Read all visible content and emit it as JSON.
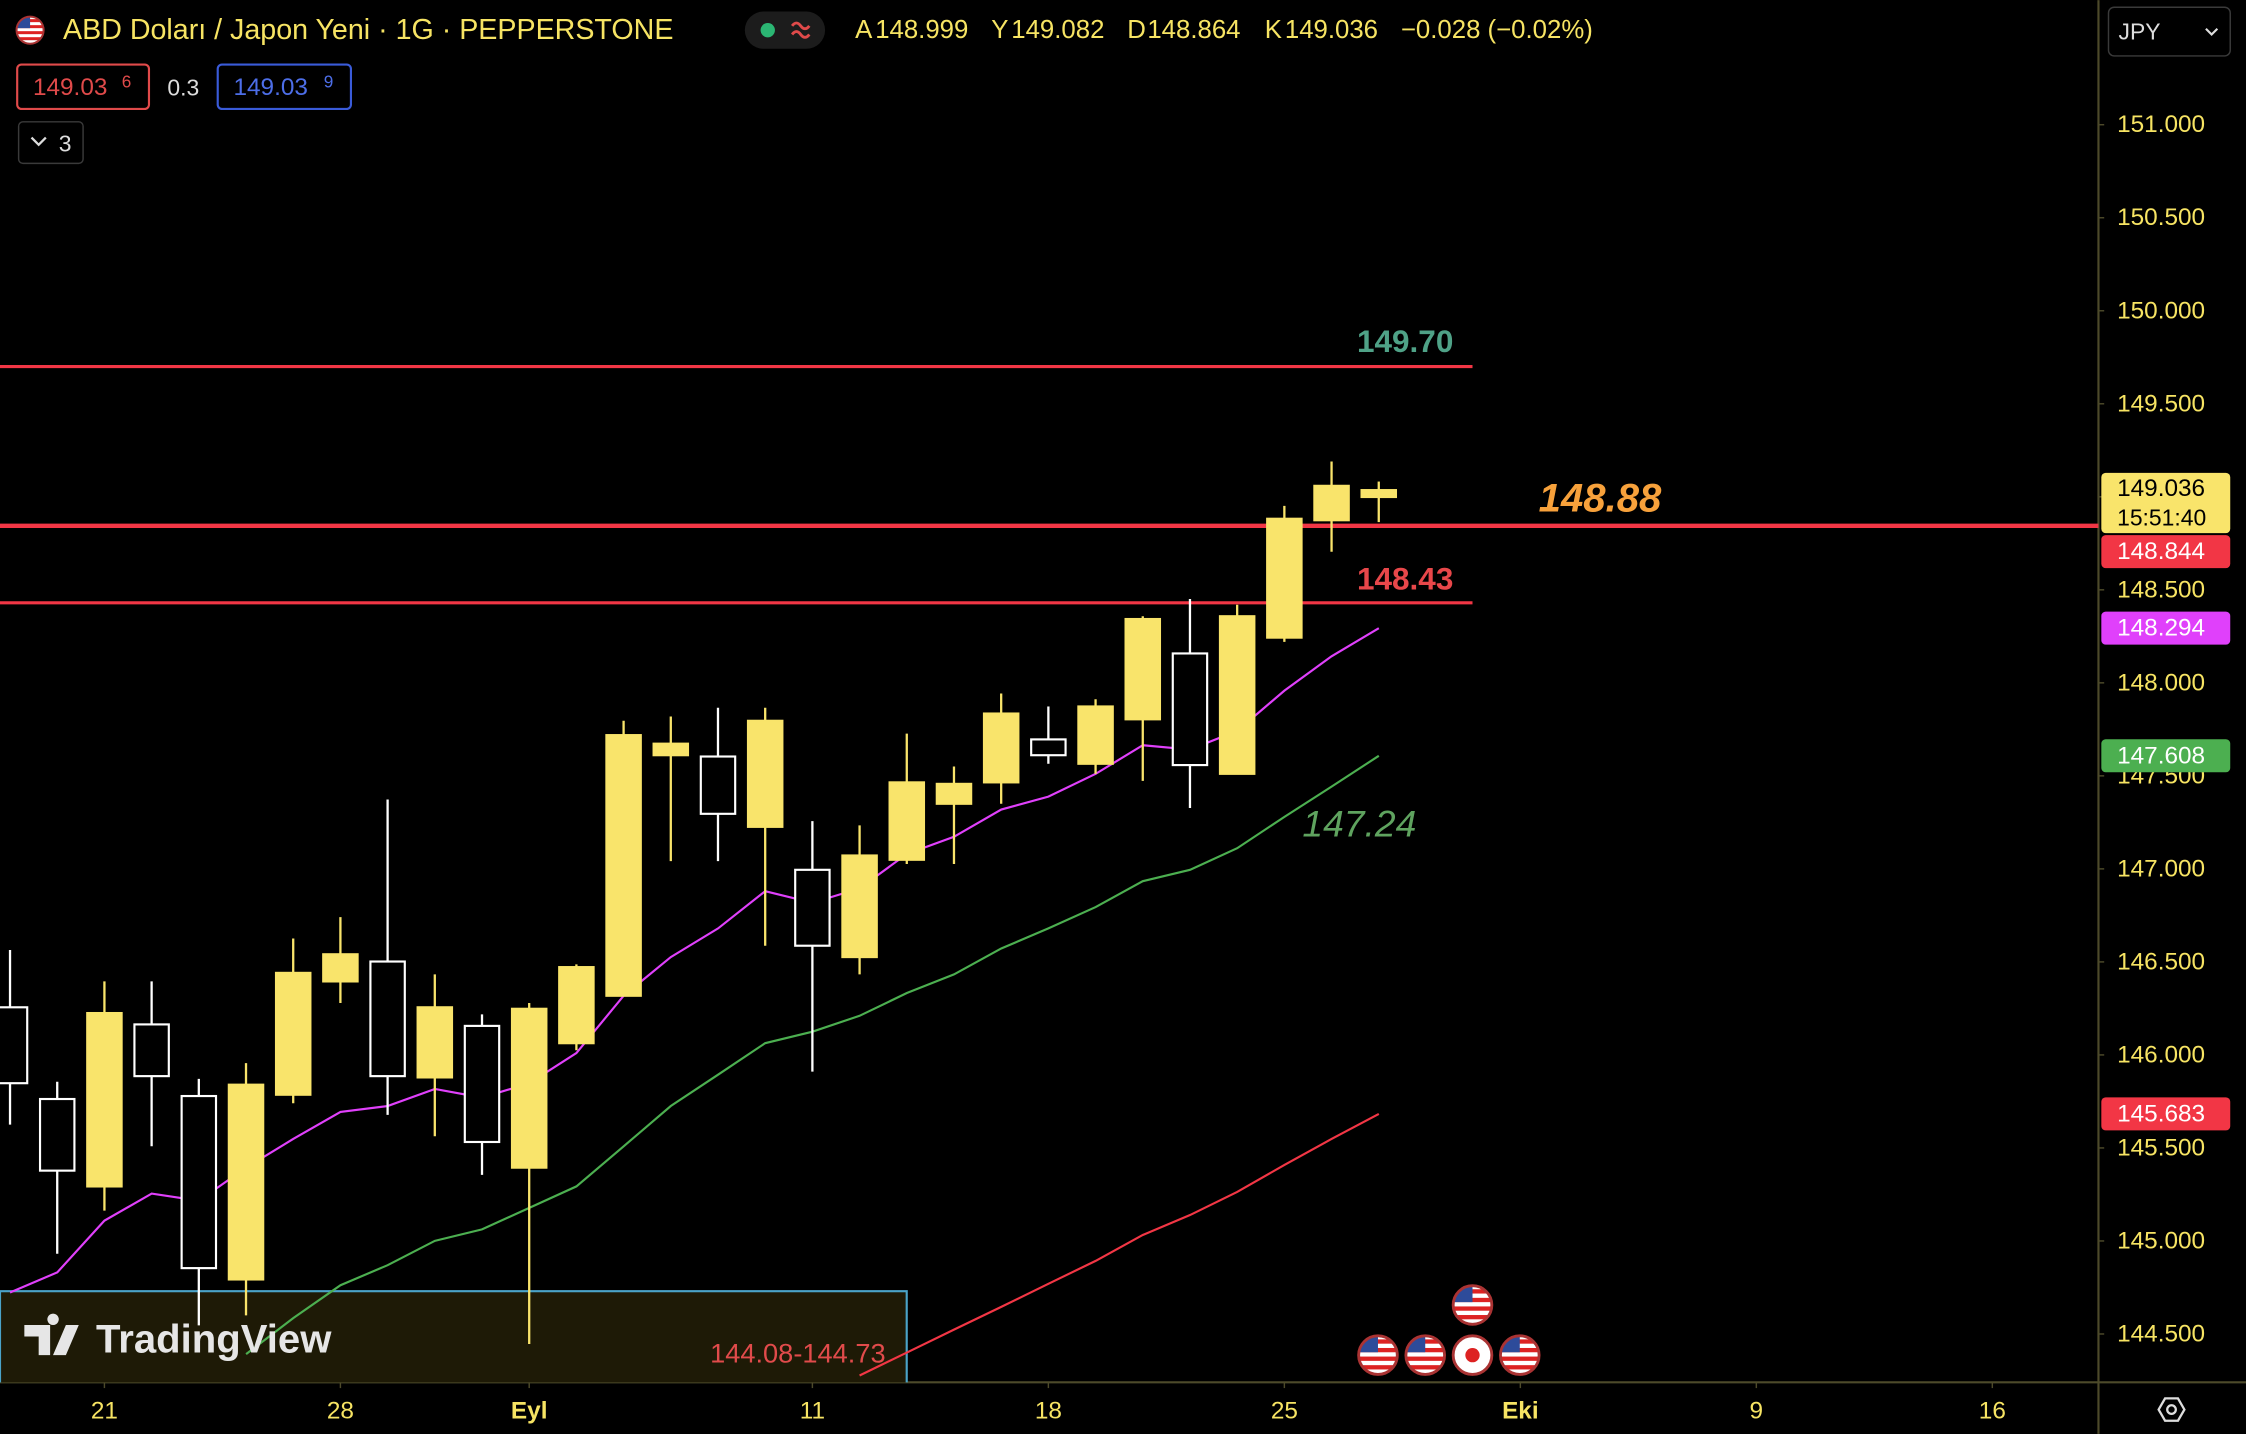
{
  "header": {
    "symbol": "ABD Doları / Japon Yeni · 1G · PEPPERSTONE",
    "ohlc_letters": [
      "A",
      "Y",
      "D",
      "K"
    ],
    "change": "−0.028 (−0.02%)",
    "bid": {
      "price": "149.03",
      "pip": "6"
    },
    "spread": "0.3",
    "ask": {
      "price": "149.03",
      "pip": "9"
    },
    "indicators_count": "3",
    "currency": "JPY"
  },
  "watermark": "TradingView",
  "chart_data": {
    "type": "candlestick",
    "categories": [
      null,
      null,
      "21",
      null,
      null,
      null,
      null,
      "28",
      null,
      null,
      null,
      "Eyl",
      null,
      null,
      null,
      null,
      null,
      "11",
      null,
      null,
      null,
      null,
      "18",
      null,
      null,
      null,
      null,
      "25",
      null,
      null,
      null,
      null,
      "Eki",
      null,
      null,
      null,
      null,
      "9",
      null,
      null,
      null,
      null,
      "16"
    ],
    "open": [
      146.256,
      145.763,
      145.293,
      146.164,
      145.779,
      144.793,
      145.786,
      146.395,
      146.502,
      145.879,
      146.156,
      145.394,
      146.063,
      146.318,
      147.611,
      147.604,
      147.226,
      146.995,
      146.526,
      147.049,
      147.35,
      147.465,
      147.696,
      147.565,
      147.804,
      148.158,
      147.511,
      148.243,
      148.874,
      148.999,
      null,
      null,
      null,
      null,
      null,
      null,
      null,
      null,
      null,
      null,
      null,
      null,
      null
    ],
    "high": [
      146.564,
      145.856,
      146.395,
      146.395,
      145.871,
      145.956,
      146.626,
      146.741,
      147.373,
      146.433,
      146.218,
      146.279,
      146.487,
      147.796,
      147.819,
      147.866,
      147.866,
      147.257,
      147.234,
      147.727,
      147.55,
      147.943,
      147.873,
      147.912,
      148.358,
      148.451,
      148.42,
      148.951,
      149.19,
      149.082,
      null,
      null,
      null,
      null,
      null,
      null,
      null,
      null,
      null,
      null,
      null,
      null,
      null
    ],
    "low": [
      145.625,
      144.931,
      145.163,
      145.509,
      144.546,
      144.6,
      145.74,
      146.279,
      145.678,
      145.563,
      145.355,
      144.446,
      146.025,
      146.318,
      147.042,
      147.042,
      146.587,
      145.91,
      146.433,
      147.026,
      147.026,
      147.35,
      147.565,
      147.511,
      147.473,
      147.327,
      147.511,
      148.22,
      148.705,
      148.864,
      null,
      null,
      null,
      null,
      null,
      null,
      null,
      null,
      null,
      null,
      null,
      null,
      null
    ],
    "close": [
      145.848,
      145.378,
      146.225,
      145.886,
      144.854,
      145.84,
      146.441,
      146.541,
      145.886,
      146.256,
      145.532,
      146.248,
      146.472,
      147.719,
      147.673,
      147.296,
      147.796,
      146.587,
      147.072,
      147.465,
      147.457,
      147.835,
      147.611,
      147.873,
      148.343,
      147.558,
      148.358,
      148.882,
      149.059,
      149.036,
      null,
      null,
      null,
      null,
      null,
      null,
      null,
      null,
      null,
      null,
      null,
      null,
      null
    ],
    "up_color": "#f9e46b",
    "down_color": "#ffffff",
    "series": [
      {
        "color": "#e040fb",
        "tag_text_color": "#ffffff",
        "values": [
          144.723,
          144.831,
          145.109,
          145.255,
          145.216,
          145.394,
          145.548,
          145.694,
          145.725,
          145.817,
          145.771,
          145.848,
          146.01,
          146.318,
          146.526,
          146.68,
          146.88,
          146.818,
          146.895,
          147.08,
          147.173,
          147.319,
          147.388,
          147.511,
          147.665,
          147.642,
          147.742,
          147.958,
          148.143,
          148.294,
          null,
          null,
          null,
          null,
          null,
          null,
          null,
          null,
          null,
          null,
          null,
          null,
          null
        ]
      },
      {
        "color": "#4caf50",
        "tag_text_color": "#ffffff",
        "values": [
          null,
          null,
          null,
          null,
          null,
          144.392,
          144.585,
          144.762,
          144.87,
          145.001,
          145.062,
          145.178,
          145.293,
          145.509,
          145.725,
          145.894,
          146.063,
          146.125,
          146.21,
          146.333,
          146.433,
          146.572,
          146.68,
          146.795,
          146.934,
          146.995,
          147.111,
          147.28,
          147.442,
          147.608,
          null,
          null,
          null,
          null,
          null,
          null,
          null,
          null,
          null,
          null,
          null,
          null,
          null
        ]
      },
      {
        "color": "#f23645",
        "tag_text_color": "#ffffff",
        "values": [
          null,
          null,
          null,
          null,
          null,
          null,
          null,
          null,
          null,
          null,
          null,
          null,
          null,
          null,
          null,
          null,
          null,
          null,
          144.277,
          144.4,
          144.523,
          144.646,
          144.77,
          144.893,
          145.032,
          145.139,
          145.263,
          145.409,
          145.548,
          145.683,
          null,
          null,
          null,
          null,
          null,
          null,
          null,
          null,
          null,
          null,
          null,
          null,
          null
        ]
      }
    ],
    "ylim": [
      144.24,
      151.67
    ],
    "yticks": [
      {
        "value": 144.5,
        "label": "144.500"
      },
      {
        "value": 145,
        "label": "145.000"
      },
      {
        "value": 145.5,
        "label": "145.500"
      },
      {
        "value": 146,
        "label": "146.000"
      },
      {
        "value": 146.5,
        "label": "146.500"
      },
      {
        "value": 147,
        "label": "147.000"
      },
      {
        "value": 147.5,
        "label": "147.500"
      },
      {
        "value": 148,
        "label": "148.000"
      },
      {
        "value": 148.5,
        "label": "148.500"
      },
      {
        "value": 149,
        "label": "149.000"
      },
      {
        "value": 149.5,
        "label": "149.500"
      },
      {
        "value": 150,
        "label": "150.000"
      },
      {
        "value": 150.5,
        "label": "150.500"
      },
      {
        "value": 151,
        "label": "151.000"
      }
    ],
    "grid": false,
    "levels": [
      {
        "value": 149.7,
        "label": "149.70",
        "color": "#f23645",
        "label_color": "#4fa287",
        "extended": false
      },
      {
        "value": 148.844,
        "color": "#f23645",
        "extended": true
      },
      {
        "value": 148.43,
        "color": "#f23645",
        "label_color": "#e8474a",
        "extended": false
      }
    ],
    "annotations": [
      {
        "text": "148.88",
        "color": "#f7a13b"
      },
      {
        "text": "147.24",
        "color": "#5fa35f"
      }
    ],
    "zone": {
      "label": "144.08-144.73",
      "low": 144.08,
      "high": 144.73,
      "color": "#e14b4b"
    },
    "countdown": "15:51:40"
  }
}
